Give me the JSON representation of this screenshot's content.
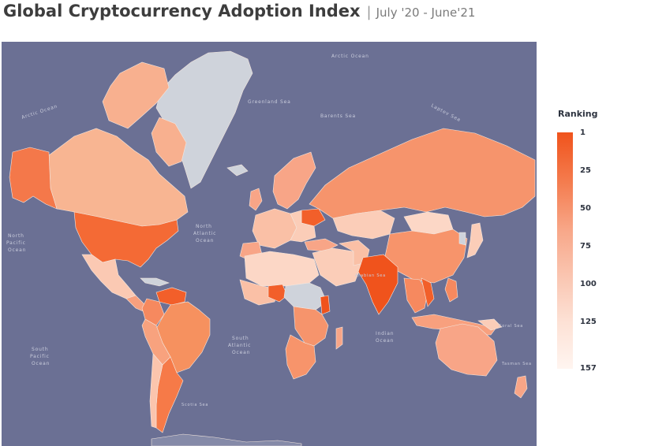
{
  "title": {
    "main": "Global Cryptocurrency Adoption Index",
    "separator": "|",
    "subtitle": "July '20 - June'21"
  },
  "legend": {
    "title": "Ranking",
    "ticks": [
      {
        "label": "1",
        "value": 1
      },
      {
        "label": "25",
        "value": 25
      },
      {
        "label": "50",
        "value": 50
      },
      {
        "label": "75",
        "value": 75
      },
      {
        "label": "100",
        "value": 100
      },
      {
        "label": "125",
        "value": 125
      },
      {
        "label": "157",
        "value": 157
      }
    ],
    "color_high_rank": "#f0531c",
    "color_low_rank": "#fff5f0"
  },
  "map": {
    "ocean_color": "#6b7094",
    "no_data_color": "#cfd3db",
    "ocean_labels": {
      "arctic_ocean_top": "Arctic Ocean",
      "arctic_ocean_left": "Arctic Ocean",
      "greenland_sea": "Greenland Sea",
      "barents_sea": "Barents Sea",
      "laptev_sea": "Laptev Sea",
      "north_atlantic_1": "North",
      "north_atlantic_2": "Atlantic",
      "north_atlantic_3": "Ocean",
      "north_pacific_1": "North",
      "north_pacific_2": "Pacific",
      "north_pacific_3": "Ocean",
      "south_atlantic_1": "South",
      "south_atlantic_2": "Atlantic",
      "south_atlantic_3": "Ocean",
      "south_pacific_1": "South",
      "south_pacific_2": "Pacific",
      "south_pacific_3": "Ocean",
      "indian_ocean_1": "Indian",
      "indian_ocean_2": "Ocean",
      "arabian_sea": "Arabian Sea",
      "tasman_sea": "Tasman Sea",
      "scotia_sea": "Scotia Sea",
      "coral_sea": "Coral Sea"
    }
  }
}
